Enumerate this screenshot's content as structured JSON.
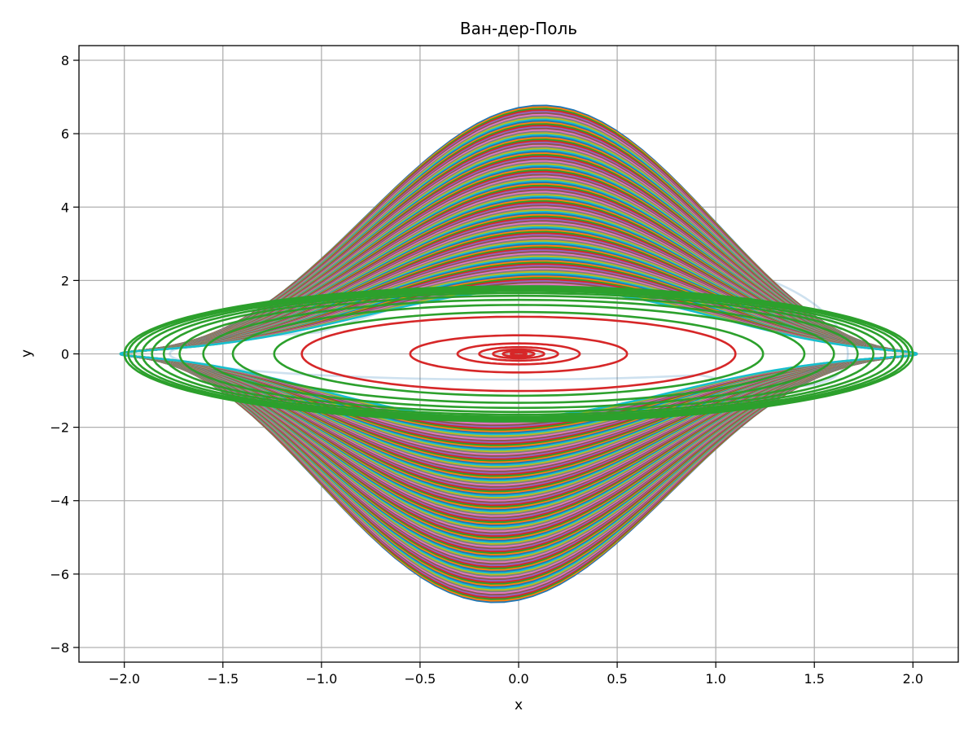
{
  "chart_data": {
    "type": "line",
    "title": "Ван-дер-Поль",
    "xlabel": "x",
    "ylabel": "y",
    "xlim": [
      -2.23,
      2.23
    ],
    "ylim": [
      -8.4,
      8.4
    ],
    "grid": true,
    "x_ticks": [
      {
        "value": -2.0,
        "label": "−2.0"
      },
      {
        "value": -1.5,
        "label": "−1.5"
      },
      {
        "value": -1.0,
        "label": "−1.0"
      },
      {
        "value": -0.5,
        "label": "−0.5"
      },
      {
        "value": 0.0,
        "label": "0.0"
      },
      {
        "value": 0.5,
        "label": "0.5"
      },
      {
        "value": 1.0,
        "label": "1.0"
      },
      {
        "value": 1.5,
        "label": "1.5"
      },
      {
        "value": 2.0,
        "label": "2.0"
      }
    ],
    "y_ticks": [
      {
        "value": -8,
        "label": "−8"
      },
      {
        "value": -6,
        "label": "−6"
      },
      {
        "value": -4,
        "label": "−4"
      },
      {
        "value": -2,
        "label": "−2"
      },
      {
        "value": 0,
        "label": "0"
      },
      {
        "value": 2,
        "label": "2"
      },
      {
        "value": 4,
        "label": "4"
      },
      {
        "value": 6,
        "label": "6"
      },
      {
        "value": 8,
        "label": "8"
      }
    ],
    "series_colors": [
      "#1f77b4",
      "#ff7f0e",
      "#2ca02c",
      "#d62728",
      "#9467bd",
      "#8c564b",
      "#e377c2",
      "#7f7f7f",
      "#bcbd22",
      "#17becf"
    ],
    "limit_cycle_family": {
      "count": 120,
      "amplitude_x": 2.02,
      "peak_y_min": 1.9,
      "peak_y_max": 7.65,
      "peak_x": 1.0
    },
    "inner_spirals": [
      {
        "color": "#d62728",
        "amplitudes": [
          0.04,
          0.08,
          0.13,
          0.2,
          0.31,
          0.55,
          1.1
        ]
      },
      {
        "color": "#2ca02c",
        "amplitudes": [
          1.24,
          1.45,
          1.6,
          1.72,
          1.8,
          1.86,
          1.91,
          1.95,
          1.98,
          2.0
        ]
      }
    ],
    "faint_orbit": {
      "color": "#1f77b4",
      "opacity": 0.22
    }
  }
}
